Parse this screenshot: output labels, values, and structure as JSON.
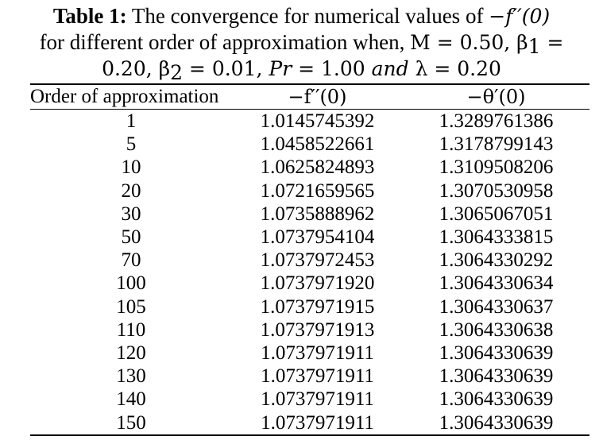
{
  "caption": {
    "label": "Table 1:",
    "line1_text": " The convergence for numerical values of ",
    "line1_math": "−f′′(0)",
    "line2_text": "for different order of approximation when, ",
    "line2_math_a": "M = 0.50, β",
    "line2_sub": "1",
    "line2_math_b": " =",
    "line3_math_a": "0.20, β",
    "line3_sub": "2",
    "line3_math_b": " = 0.01, ",
    "line3_pr": "Pr",
    "line3_math_c": " = 1.00 ",
    "line3_and": "and",
    "line3_math_d": " λ = 0.20"
  },
  "table": {
    "headers": [
      "Order of approximation",
      "−f′′(0)",
      "−θ′(0)"
    ],
    "rows": [
      [
        "1",
        "1.0145745392",
        "1.3289761386"
      ],
      [
        "5",
        "1.0458522661",
        "1.3178799143"
      ],
      [
        "10",
        "1.0625824893",
        "1.3109508206"
      ],
      [
        "20",
        "1.0721659565",
        "1.3070530958"
      ],
      [
        "30",
        "1.0735888962",
        "1.3065067051"
      ],
      [
        "50",
        "1.0737954104",
        "1.3064333815"
      ],
      [
        "70",
        "1.0737972453",
        "1.3064330292"
      ],
      [
        "100",
        "1.0737971920",
        "1.3064330634"
      ],
      [
        "105",
        "1.0737971915",
        "1.3064330637"
      ],
      [
        "110",
        "1.0737971913",
        "1.3064330638"
      ],
      [
        "120",
        "1.0737971911",
        "1.3064330639"
      ],
      [
        "130",
        "1.0737971911",
        "1.3064330639"
      ],
      [
        "140",
        "1.0737971911",
        "1.3064330639"
      ],
      [
        "150",
        "1.0737971911",
        "1.3064330639"
      ]
    ]
  }
}
